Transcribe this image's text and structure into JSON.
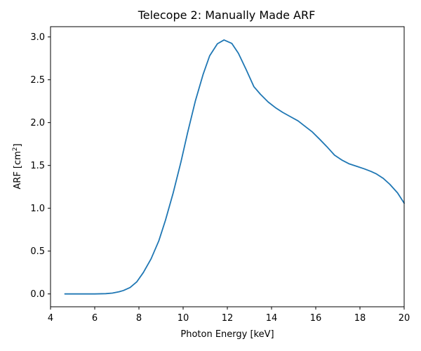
{
  "chart_data": {
    "type": "line",
    "title": "Telecope 2: Manually Made ARF",
    "xlabel": "Photon Energy [keV]",
    "ylabel_main": "ARF [cm",
    "ylabel_sup": "2",
    "ylabel_end": "]",
    "xlim": [
      4,
      20
    ],
    "ylim": [
      -0.15,
      3.12
    ],
    "xticks": [
      4,
      6,
      8,
      10,
      12,
      14,
      16,
      18,
      20
    ],
    "xtick_labels": [
      "4",
      "6",
      "8",
      "10",
      "12",
      "14",
      "16",
      "18",
      "20"
    ],
    "yticks": [
      0.0,
      0.5,
      1.0,
      1.5,
      2.0,
      2.5,
      3.0
    ],
    "ytick_labels": [
      "0.0",
      "0.5",
      "1.0",
      "1.5",
      "2.0",
      "2.5",
      "3.0"
    ],
    "grid": false,
    "series": [
      {
        "color": "#1f77b4",
        "x": [
          4.65,
          5.0,
          5.5,
          6.0,
          6.5,
          6.8,
          7.1,
          7.3,
          7.6,
          7.9,
          8.2,
          8.55,
          8.9,
          9.2,
          9.55,
          9.9,
          10.2,
          10.55,
          10.9,
          11.2,
          11.55,
          11.85,
          12.2,
          12.5,
          12.85,
          13.2,
          13.5,
          13.85,
          14.2,
          14.5,
          14.85,
          15.2,
          15.5,
          15.85,
          16.2,
          16.5,
          16.85,
          17.2,
          17.5,
          17.85,
          18.2,
          18.5,
          18.75,
          19.05,
          19.35,
          19.7,
          20.0
        ],
        "y": [
          0.0,
          0.0,
          0.0,
          0.0,
          0.003,
          0.01,
          0.025,
          0.04,
          0.075,
          0.14,
          0.25,
          0.41,
          0.62,
          0.86,
          1.18,
          1.54,
          1.88,
          2.25,
          2.56,
          2.78,
          2.92,
          2.965,
          2.925,
          2.81,
          2.62,
          2.42,
          2.33,
          2.24,
          2.17,
          2.12,
          2.07,
          2.02,
          1.96,
          1.89,
          1.8,
          1.72,
          1.62,
          1.56,
          1.52,
          1.49,
          1.46,
          1.43,
          1.4,
          1.35,
          1.28,
          1.18,
          1.06
        ]
      }
    ]
  }
}
